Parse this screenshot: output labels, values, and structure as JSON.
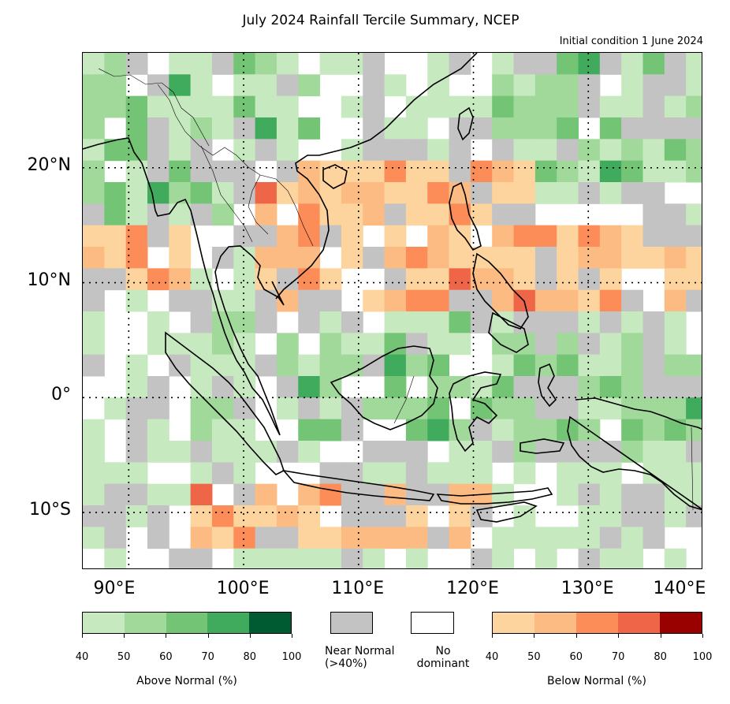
{
  "title": "July 2024 Rainfall Tercile Summary, NCEP",
  "subtitle": "Initial condition 1 June 2024",
  "map": {
    "lon_range": [
      86,
      140
    ],
    "lat_range": [
      -15,
      30
    ],
    "lat_ticks": [
      "20°N",
      "10°N",
      "0°",
      "10°S"
    ],
    "lon_ticks": [
      "90°E",
      "100°E",
      "110°E",
      "120°E",
      "130°E",
      "140°E"
    ],
    "gridlines": true
  },
  "legend": {
    "above_normal": {
      "label": "Above Normal (%)",
      "ticks": [
        "40",
        "50",
        "60",
        "70",
        "80",
        "100"
      ],
      "colors": [
        "#c7e9c0",
        "#a1d99b",
        "#74c476",
        "#41ab5d",
        "#005a32"
      ]
    },
    "near_normal": {
      "label": "Near Normal\n(>40%)",
      "color": "#c3c3c3"
    },
    "no_dominant": {
      "label": "No\ndominant",
      "color": "#ffffff"
    },
    "below_normal": {
      "label": "Below Normal (%)",
      "ticks": [
        "40",
        "50",
        "60",
        "70",
        "80",
        "100"
      ],
      "colors": [
        "#fdd49e",
        "#fdbb84",
        "#fc8d59",
        "#ef6548",
        "#990000"
      ]
    }
  }
}
